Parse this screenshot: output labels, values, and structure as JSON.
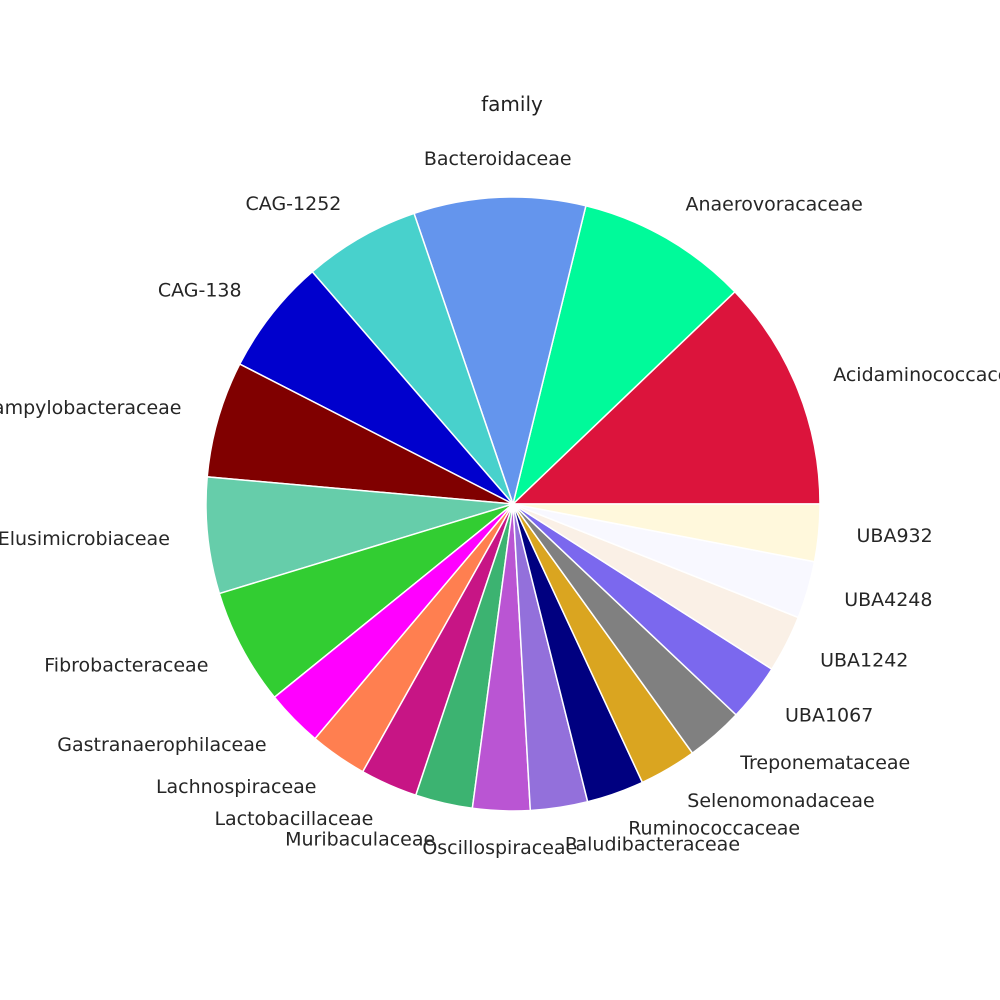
{
  "chart_data": {
    "type": "pie",
    "title": "family",
    "start_angle_deg": 0,
    "direction": "counterclockwise",
    "slices": [
      {
        "label": "Acidaminococcaceae",
        "value": 12.5,
        "color": "#dc143c"
      },
      {
        "label": "Anaerovoracaceae",
        "value": 9.3,
        "color": "#00fa9a"
      },
      {
        "label": "Bacteroidaceae",
        "value": 9.3,
        "color": "#6495ed"
      },
      {
        "label": "CAG-1252",
        "value": 6.3,
        "color": "#48d1cc"
      },
      {
        "label": "CAG-138",
        "value": 6.3,
        "color": "#0000cd"
      },
      {
        "label": "Campylobacteraceae",
        "value": 6.3,
        "color": "#800000"
      },
      {
        "label": "Elusimicrobiaceae",
        "value": 6.3,
        "color": "#66cdaa"
      },
      {
        "label": "Fibrobacteraceae",
        "value": 6.3,
        "color": "#32cd32"
      },
      {
        "label": "Gastranaerophilaceae",
        "value": 3.1,
        "color": "#ff00ff"
      },
      {
        "label": "Lachnospiraceae",
        "value": 3.1,
        "color": "#ff7f50"
      },
      {
        "label": "Lactobacillaceae",
        "value": 3.1,
        "color": "#c71585"
      },
      {
        "label": "Muribaculaceae",
        "value": 3.1,
        "color": "#3cb371"
      },
      {
        "label": "Oscillospiraceae",
        "value": 3.1,
        "color": "#ba55d3"
      },
      {
        "label": "Paludibacteraceae",
        "value": 3.1,
        "color": "#9370db"
      },
      {
        "label": "Ruminococcaceae",
        "value": 3.1,
        "color": "#000080"
      },
      {
        "label": "Selenomonadaceae",
        "value": 3.1,
        "color": "#daa520"
      },
      {
        "label": "Treponemataceae",
        "value": 3.1,
        "color": "#808080"
      },
      {
        "label": "UBA1067",
        "value": 3.1,
        "color": "#7b68ee"
      },
      {
        "label": "UBA1242",
        "value": 3.1,
        "color": "#faf0e6"
      },
      {
        "label": "UBA4248",
        "value": 3.1,
        "color": "#f8f8ff"
      },
      {
        "label": "UBA932",
        "value": 3.1,
        "color": "#fff8dc"
      }
    ]
  }
}
